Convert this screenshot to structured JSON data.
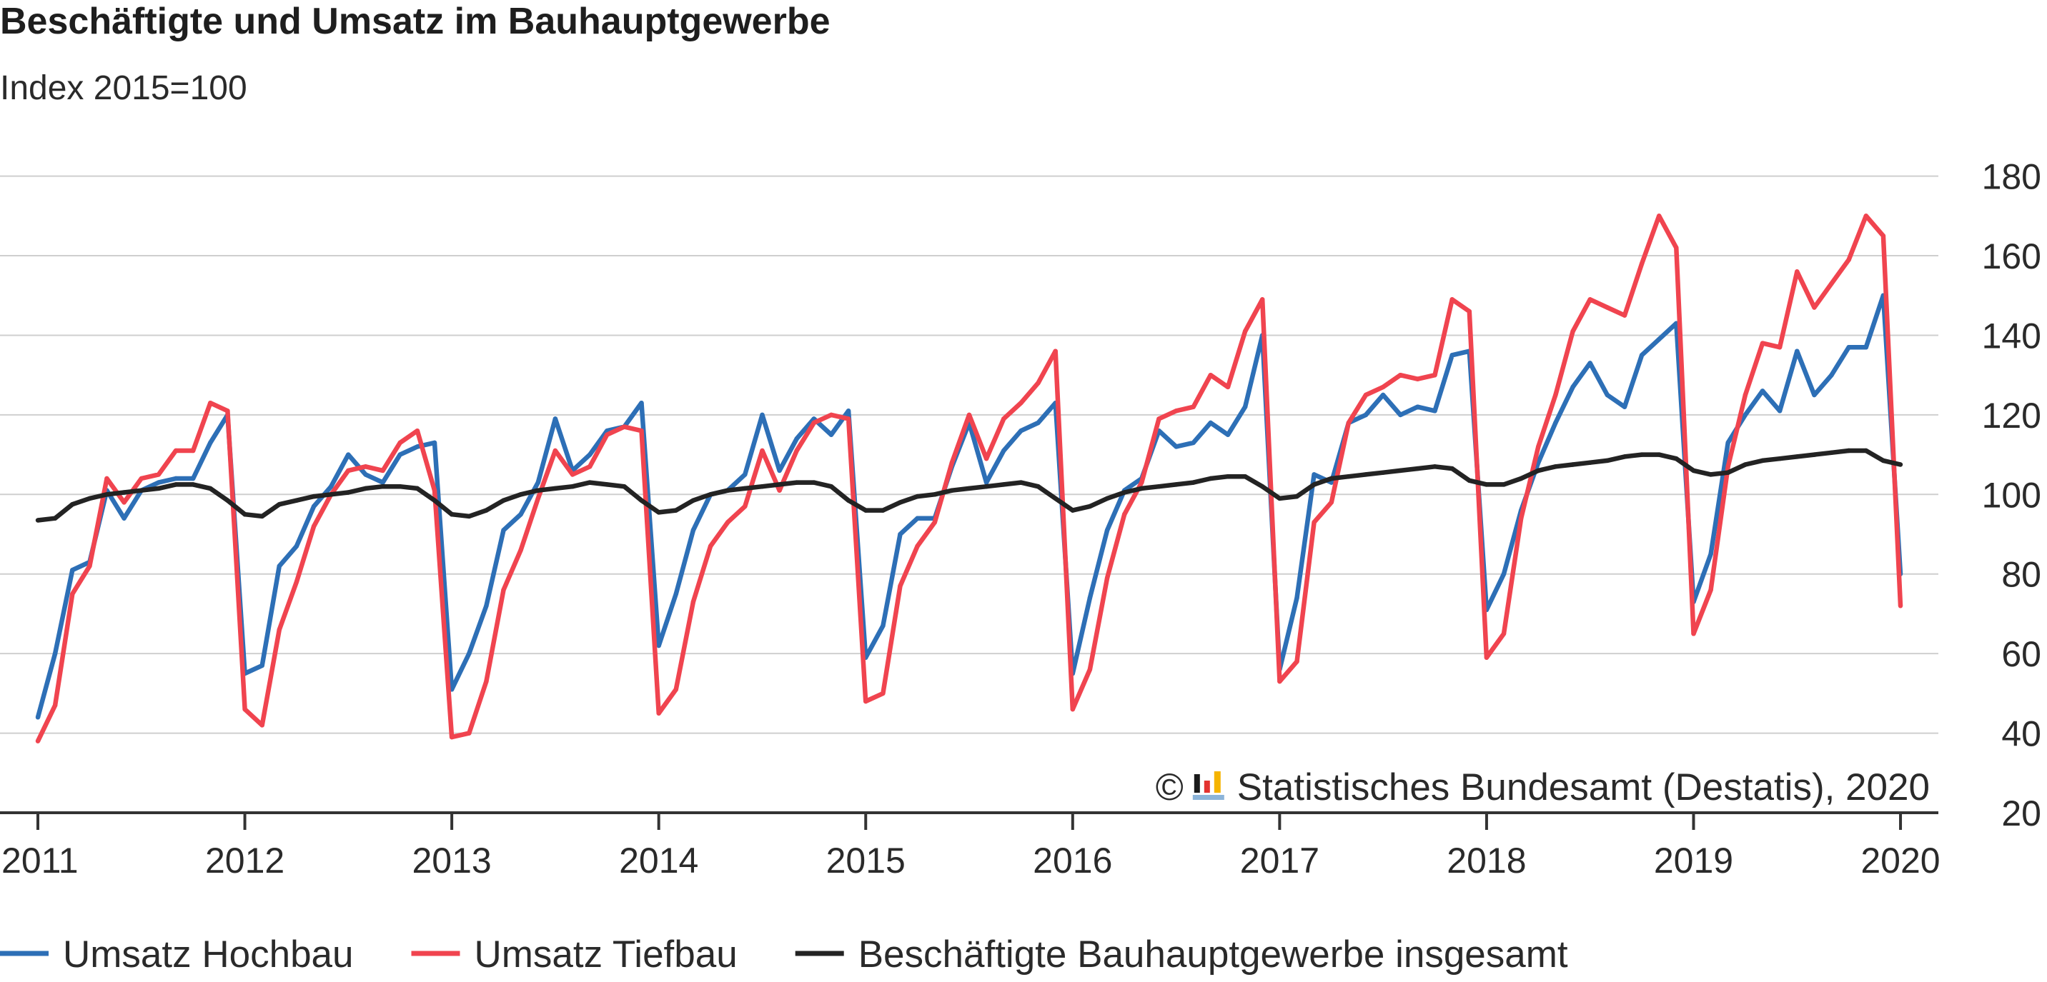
{
  "chart_data": {
    "type": "line",
    "title": "Beschäftigte und Umsatz im Bauhauptgewerbe",
    "subtitle": "Index 2015=100",
    "ylim": [
      20,
      180
    ],
    "yticks": [
      20,
      40,
      60,
      80,
      100,
      120,
      140,
      160,
      180
    ],
    "xticks": [
      "2011",
      "2012",
      "2013",
      "2014",
      "2015",
      "2016",
      "2017",
      "2018",
      "2019",
      "2020"
    ],
    "grid": true,
    "legend": "bottom",
    "x": [
      "2011-01",
      "2011-02",
      "2011-03",
      "2011-04",
      "2011-05",
      "2011-06",
      "2011-07",
      "2011-08",
      "2011-09",
      "2011-10",
      "2011-11",
      "2011-12",
      "2012-01",
      "2012-02",
      "2012-03",
      "2012-04",
      "2012-05",
      "2012-06",
      "2012-07",
      "2012-08",
      "2012-09",
      "2012-10",
      "2012-11",
      "2012-12",
      "2013-01",
      "2013-02",
      "2013-03",
      "2013-04",
      "2013-05",
      "2013-06",
      "2013-07",
      "2013-08",
      "2013-09",
      "2013-10",
      "2013-11",
      "2013-12",
      "2014-01",
      "2014-02",
      "2014-03",
      "2014-04",
      "2014-05",
      "2014-06",
      "2014-07",
      "2014-08",
      "2014-09",
      "2014-10",
      "2014-11",
      "2014-12",
      "2015-01",
      "2015-02",
      "2015-03",
      "2015-04",
      "2015-05",
      "2015-06",
      "2015-07",
      "2015-08",
      "2015-09",
      "2015-10",
      "2015-11",
      "2015-12",
      "2016-01",
      "2016-02",
      "2016-03",
      "2016-04",
      "2016-05",
      "2016-06",
      "2016-07",
      "2016-08",
      "2016-09",
      "2016-10",
      "2016-11",
      "2016-12",
      "2017-01",
      "2017-02",
      "2017-03",
      "2017-04",
      "2017-05",
      "2017-06",
      "2017-07",
      "2017-08",
      "2017-09",
      "2017-10",
      "2017-11",
      "2017-12",
      "2018-01",
      "2018-02",
      "2018-03",
      "2018-04",
      "2018-05",
      "2018-06",
      "2018-07",
      "2018-08",
      "2018-09",
      "2018-10",
      "2018-11",
      "2018-12",
      "2019-01",
      "2019-02",
      "2019-03",
      "2019-04",
      "2019-05",
      "2019-06",
      "2019-07",
      "2019-08",
      "2019-09",
      "2019-10",
      "2019-11",
      "2019-12",
      "2020-01"
    ],
    "series": [
      {
        "name": "Umsatz Hochbau",
        "color": "#2d6fb6",
        "values": [
          44,
          60,
          81,
          83,
          101,
          94,
          101,
          103,
          104,
          104,
          113,
          120,
          55,
          57,
          82,
          87,
          97,
          102,
          110,
          105,
          103,
          110,
          112,
          113,
          51,
          60,
          72,
          91,
          95,
          103,
          119,
          106,
          110,
          116,
          117,
          123,
          62,
          75,
          91,
          100,
          101,
          105,
          120,
          106,
          114,
          119,
          115,
          121,
          59,
          67,
          90,
          94,
          94,
          107,
          118,
          103,
          111,
          116,
          118,
          123,
          55,
          74,
          91,
          101,
          104,
          116,
          112,
          113,
          118,
          115,
          122,
          140,
          56,
          74,
          105,
          103,
          118,
          120,
          125,
          120,
          122,
          121,
          135,
          136,
          71,
          80,
          96,
          108,
          118,
          127,
          133,
          125,
          122,
          135,
          139,
          143,
          73,
          85,
          113,
          120,
          126,
          121,
          136,
          125,
          130,
          137,
          137,
          150,
          80
        ]
      },
      {
        "name": "Umsatz Tiefbau",
        "color": "#f0444f",
        "values": [
          38,
          47,
          75,
          82,
          104,
          98,
          104,
          105,
          111,
          111,
          123,
          121,
          46,
          42,
          66,
          78,
          92,
          100,
          106,
          107,
          106,
          113,
          116,
          101,
          39,
          40,
          53,
          76,
          86,
          99,
          111,
          105,
          107,
          115,
          117,
          116,
          45,
          51,
          73,
          87,
          93,
          97,
          111,
          101,
          111,
          118,
          120,
          119,
          48,
          50,
          77,
          87,
          93,
          108,
          120,
          109,
          119,
          123,
          128,
          136,
          46,
          56,
          79,
          95,
          103,
          119,
          121,
          122,
          130,
          127,
          141,
          149,
          53,
          58,
          93,
          98,
          118,
          125,
          127,
          130,
          129,
          130,
          149,
          146,
          59,
          65,
          94,
          112,
          125,
          141,
          149,
          147,
          145,
          158,
          170,
          162,
          65,
          76,
          107,
          125,
          138,
          137,
          156,
          147,
          153,
          159,
          170,
          165,
          72
        ]
      },
      {
        "name": "Beschäftigte Bauhauptgewerbe insgesamt",
        "color": "#232323",
        "values": [
          93.5,
          94,
          97.5,
          99,
          100,
          100.5,
          101,
          101.5,
          102.5,
          102.5,
          101.5,
          98.5,
          95,
          94.5,
          97.5,
          98.5,
          99.5,
          100,
          100.5,
          101.5,
          102,
          102,
          101.5,
          98.5,
          95,
          94.5,
          96,
          98.5,
          100,
          101,
          101.5,
          102,
          103,
          102.5,
          102,
          98.5,
          95.5,
          96,
          98.5,
          100,
          101,
          101.5,
          102,
          102.5,
          103,
          103,
          102,
          98.5,
          96,
          96,
          98,
          99.5,
          100,
          101,
          101.5,
          102,
          102.5,
          103,
          102,
          99,
          96,
          97,
          99,
          100.5,
          101.5,
          102,
          102.5,
          103,
          104,
          104.5,
          104.5,
          102,
          99,
          99.5,
          102.5,
          104,
          104.5,
          105,
          105.5,
          106,
          106.5,
          107,
          106.5,
          103.5,
          102.5,
          102.5,
          104,
          106,
          107,
          107.5,
          108,
          108.5,
          109.5,
          110,
          110,
          109,
          106,
          105,
          105.5,
          107.5,
          108.5,
          109,
          109.5,
          110,
          110.5,
          111,
          111,
          108.5,
          107.5
        ]
      }
    ]
  },
  "source": {
    "symbol": "©",
    "text": "Statistisches Bundesamt (Destatis), 2020",
    "logo_icon": "destatis-logo-icon",
    "logo_colors": [
      "#1a1a1a",
      "#e3322f",
      "#f5b400",
      "#8cb4d9"
    ]
  }
}
